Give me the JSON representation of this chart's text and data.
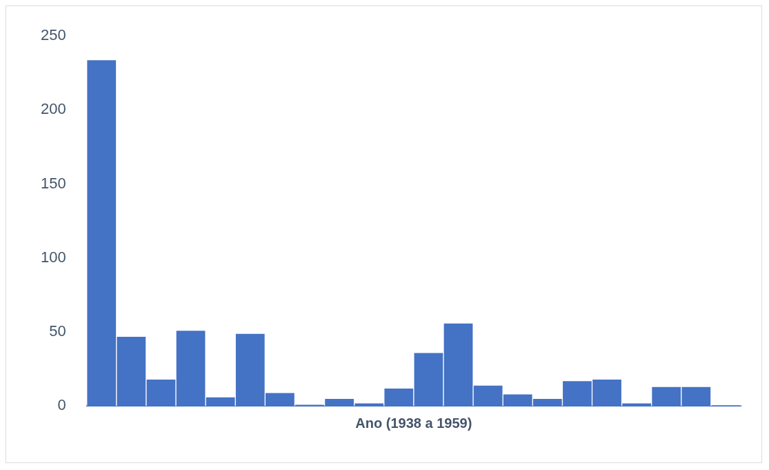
{
  "chart_data": {
    "type": "bar",
    "xlabel": "Ano (1938 a 1959)",
    "categories": [
      null,
      null,
      null,
      null,
      null,
      null,
      null,
      null,
      null,
      null,
      null,
      null,
      null,
      null,
      null,
      null,
      null,
      null,
      null,
      null,
      null,
      null
    ],
    "values": [
      234,
      47,
      18,
      51,
      6,
      49,
      9,
      1,
      5,
      2,
      12,
      36,
      56,
      14,
      8,
      5,
      17,
      18,
      2,
      13,
      13,
      0.5
    ],
    "color": "#4472c4",
    "ylim": [
      0,
      250
    ],
    "yticks": [
      0,
      50,
      100,
      150,
      200,
      250
    ],
    "grid": false,
    "legend": false
  }
}
